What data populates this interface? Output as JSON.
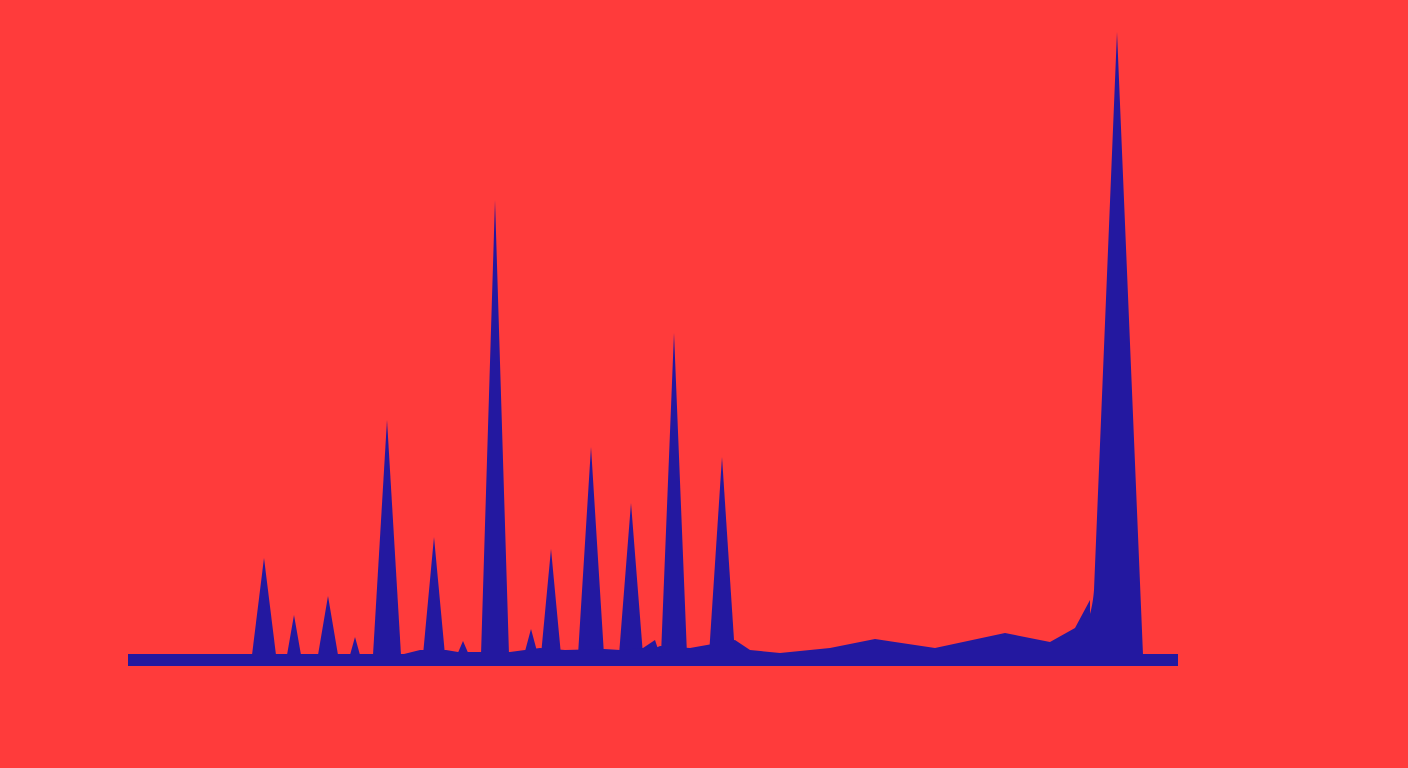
{
  "artwork": {
    "background_color": "#FF3B3B",
    "shape_color": "#2318A0",
    "icon": "spike-silhouette-icon",
    "spike_count": 17
  }
}
